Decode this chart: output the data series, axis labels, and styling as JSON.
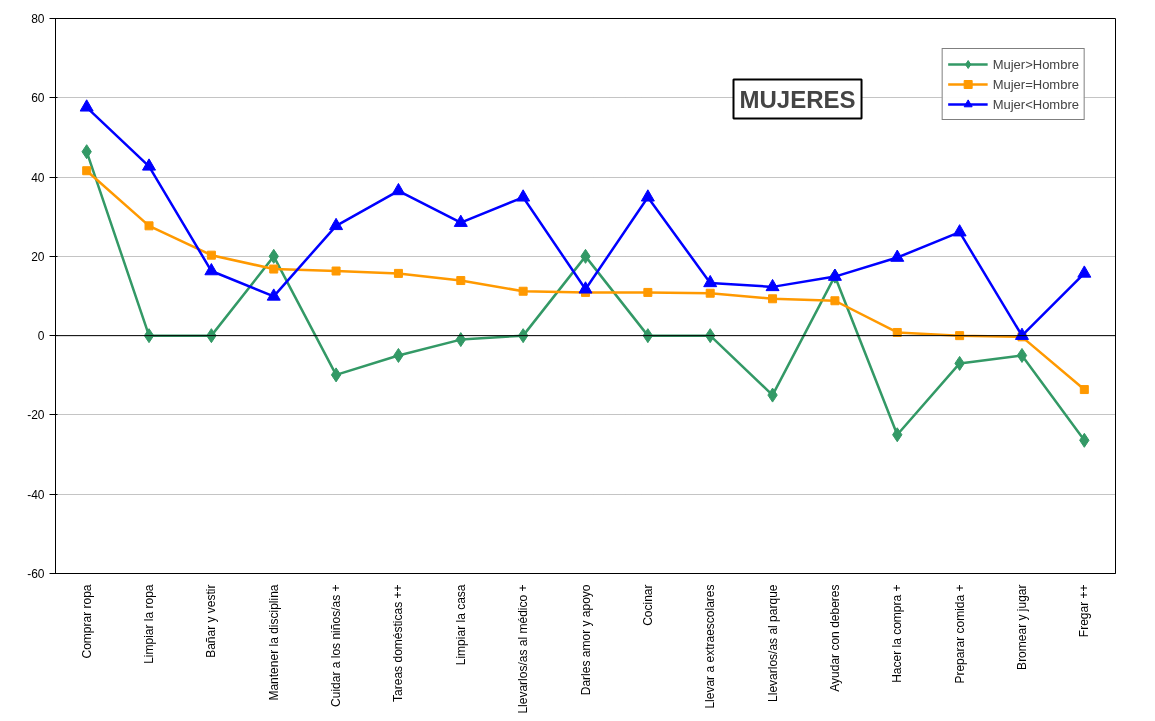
{
  "chart_data": {
    "type": "line",
    "title": "MUJERES",
    "categories": [
      "Comprar ropa",
      "Limpiar la ropa",
      "Bañar y vestir",
      "Mantener la disciplina",
      "Cuidar a los niños/as +",
      "Tareas domésticas ++",
      "Limpiar la casa",
      "Llevarlos/as al médico +",
      "Darles amor y apoyo",
      "Cocinar",
      "Llevar a extraescolares",
      "Llevarlos/as al parque",
      "Ayudar con deberes",
      "Hacer la compra +",
      "Preparar comida +",
      "Bromear y jugar",
      "Fregar ++"
    ],
    "series": [
      {
        "name": "Mujer>Hombre",
        "color": "#339966",
        "marker": "diamond",
        "values": [
          46.4,
          0,
          0,
          20,
          -9.9,
          -5,
          -1,
          0,
          20,
          0,
          0,
          -15,
          15,
          -25,
          -7,
          -5,
          -26.4
        ]
      },
      {
        "name": "Mujer=Hombre",
        "color": "#ff9900",
        "marker": "square",
        "values": [
          41.6,
          27.7,
          20.3,
          16.8,
          16.3,
          15.7,
          13.9,
          11.2,
          10.9,
          10.9,
          10.7,
          9.3,
          8.8,
          0.8,
          0,
          -0.3,
          -13.6
        ]
      },
      {
        "name": "Mujer<Hombre",
        "color": "#0000ff",
        "marker": "triangle",
        "values": [
          57.6,
          42.7,
          16.3,
          9.9,
          27.7,
          36.5,
          28.5,
          34.9,
          11.7,
          34.9,
          13.3,
          12.3,
          14.9,
          19.7,
          26.1,
          0,
          15.7
        ]
      }
    ],
    "ylim": [
      -60,
      80
    ],
    "yticks": [
      -60,
      -40,
      -20,
      0,
      20,
      40,
      60,
      80
    ],
    "ref_lines": [
      {
        "axis": "y",
        "value": 0,
        "color": "#000000"
      }
    ],
    "grid": "y",
    "legend": "top right",
    "line_style": "solid"
  }
}
